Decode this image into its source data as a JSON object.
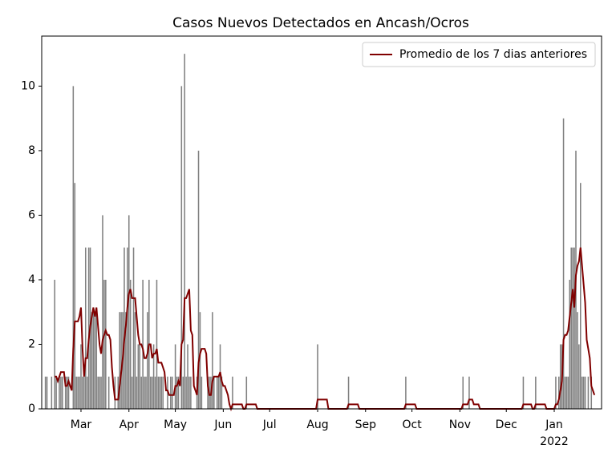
{
  "chart_data": {
    "type": "bar",
    "title": "Casos Nuevos Detectados en Ancash/Ocros",
    "series": [
      {
        "type": "bar",
        "color": "#808080",
        "values": [
          1,
          1,
          0,
          0,
          1,
          0,
          4,
          1,
          0,
          1,
          1,
          1,
          0,
          1,
          1,
          1,
          0,
          0,
          10,
          7,
          1,
          1,
          1,
          2,
          1,
          1,
          5,
          1,
          5,
          5,
          3,
          3,
          3,
          3,
          1,
          1,
          1,
          6,
          4,
          4,
          0,
          1,
          0,
          0,
          0,
          1,
          0,
          1,
          3,
          3,
          3,
          5,
          3,
          5,
          6,
          4,
          1,
          5,
          3,
          1,
          2,
          2,
          1,
          4,
          1,
          1,
          3,
          4,
          1,
          1,
          2,
          1,
          4,
          1,
          1,
          1,
          1,
          0,
          0,
          1,
          0,
          1,
          1,
          0,
          2,
          1,
          1,
          0,
          10,
          1,
          11,
          1,
          2,
          1,
          1,
          0,
          0,
          0,
          1,
          8,
          3,
          1,
          0,
          0,
          0,
          1,
          1,
          1,
          3,
          1,
          0,
          1,
          1,
          2,
          1,
          0,
          0,
          0,
          0,
          0,
          0,
          1,
          0,
          0,
          0,
          0,
          0,
          0,
          0,
          0,
          1,
          0,
          0,
          0,
          0,
          0,
          0,
          0,
          0,
          0,
          0,
          0,
          0,
          0,
          0,
          0,
          0,
          0,
          0,
          0,
          0,
          0,
          0,
          0,
          0,
          0,
          0,
          0,
          0,
          0,
          0,
          0,
          0,
          0,
          0,
          0,
          0,
          0,
          0,
          0,
          0,
          0,
          0,
          0,
          0,
          0,
          2,
          0,
          0,
          0,
          0,
          0,
          0,
          0,
          0,
          0,
          0,
          0,
          0,
          0,
          0,
          0,
          0,
          0,
          0,
          0,
          1,
          0,
          0,
          0,
          0,
          0,
          0,
          0,
          0,
          0,
          0,
          0,
          0,
          0,
          0,
          0,
          0,
          0,
          0,
          0,
          0,
          0,
          0,
          0,
          0,
          0,
          0,
          0,
          0,
          0,
          0,
          0,
          0,
          0,
          0,
          0,
          0,
          1,
          0,
          0,
          0,
          0,
          0,
          0,
          0,
          0,
          0,
          0,
          0,
          0,
          0,
          0,
          0,
          0,
          0,
          0,
          0,
          0,
          0,
          0,
          0,
          0,
          0,
          0,
          0,
          0,
          0,
          0,
          0,
          0,
          0,
          0,
          0,
          0,
          1,
          0,
          0,
          0,
          1,
          0,
          0,
          0,
          0,
          0,
          0,
          0,
          0,
          0,
          0,
          0,
          0,
          0,
          0,
          0,
          0,
          0,
          0,
          0,
          0,
          0,
          0,
          0,
          0,
          0,
          0,
          0,
          0,
          0,
          0,
          0,
          0,
          0,
          0,
          1,
          0,
          0,
          0,
          0,
          0,
          0,
          0,
          1,
          0,
          0,
          0,
          0,
          0,
          0,
          0,
          0,
          0,
          0,
          0,
          0,
          1,
          0,
          1,
          2,
          2,
          9,
          1,
          1,
          1,
          4,
          5,
          5,
          5,
          8,
          3,
          2,
          7,
          1,
          1,
          1,
          0,
          1,
          0,
          1,
          0,
          0
        ]
      },
      {
        "type": "line",
        "name": "Promedio de los 7 dias anteriores",
        "color": "#800000",
        "values": [
          null,
          null,
          null,
          null,
          null,
          null,
          1.0,
          1.0,
          0.86,
          1.0,
          1.14,
          1.14,
          1.14,
          0.71,
          0.71,
          0.86,
          0.71,
          0.57,
          1.86,
          2.71,
          2.71,
          2.71,
          2.86,
          3.14,
          1.86,
          1.0,
          1.57,
          1.57,
          2.14,
          2.57,
          2.86,
          3.14,
          2.86,
          3.14,
          2.57,
          2.0,
          1.71,
          2.14,
          2.29,
          2.43,
          2.29,
          2.29,
          2.14,
          1.29,
          0.71,
          0.29,
          0.29,
          0.29,
          0.71,
          1.14,
          1.57,
          2.14,
          2.57,
          3.14,
          3.57,
          3.71,
          3.43,
          3.43,
          3.43,
          2.86,
          2.29,
          2.0,
          2.0,
          1.86,
          1.57,
          1.57,
          1.71,
          2.0,
          2.0,
          1.57,
          1.71,
          1.71,
          1.86,
          1.43,
          1.43,
          1.43,
          1.29,
          1.14,
          0.57,
          0.57,
          0.43,
          0.43,
          0.43,
          0.43,
          0.71,
          0.71,
          0.86,
          0.71,
          2.0,
          2.14,
          3.43,
          3.43,
          3.57,
          3.71,
          2.43,
          2.29,
          0.71,
          0.57,
          0.43,
          1.43,
          1.71,
          1.86,
          1.86,
          1.86,
          1.71,
          0.71,
          0.43,
          0.43,
          0.86,
          1.0,
          1.0,
          1.0,
          1.0,
          1.14,
          0.86,
          0.71,
          0.71,
          0.57,
          0.43,
          0.14,
          0,
          0.14,
          0.14,
          0.14,
          0.14,
          0.14,
          0.14,
          0.14,
          0,
          0,
          0.14,
          0.14,
          0.14,
          0.14,
          0.14,
          0.14,
          0.14,
          0,
          0,
          0,
          0,
          0,
          0,
          0,
          0,
          0,
          0,
          0,
          0,
          0,
          0,
          0,
          0,
          0,
          0,
          0,
          0,
          0,
          0,
          0,
          0,
          0,
          0,
          0,
          0,
          0,
          0,
          0,
          0,
          0,
          0,
          0,
          0,
          0,
          0,
          0,
          0.29,
          0.29,
          0.29,
          0.29,
          0.29,
          0.29,
          0.29,
          0,
          0,
          0,
          0,
          0,
          0,
          0,
          0,
          0,
          0,
          0,
          0,
          0,
          0.14,
          0.14,
          0.14,
          0.14,
          0.14,
          0.14,
          0.14,
          0,
          0,
          0,
          0,
          0,
          0,
          0,
          0,
          0,
          0,
          0,
          0,
          0,
          0,
          0,
          0,
          0,
          0,
          0,
          0,
          0,
          0,
          0,
          0,
          0,
          0,
          0,
          0,
          0,
          0,
          0.14,
          0.14,
          0.14,
          0.14,
          0.14,
          0.14,
          0.14,
          0,
          0,
          0,
          0,
          0,
          0,
          0,
          0,
          0,
          0,
          0,
          0,
          0,
          0,
          0,
          0,
          0,
          0,
          0,
          0,
          0,
          0,
          0,
          0,
          0,
          0,
          0,
          0,
          0,
          0,
          0.14,
          0.14,
          0.14,
          0.14,
          0.29,
          0.29,
          0.29,
          0.14,
          0.14,
          0.14,
          0.14,
          0,
          0,
          0,
          0,
          0,
          0,
          0,
          0,
          0,
          0,
          0,
          0,
          0,
          0,
          0,
          0,
          0,
          0,
          0,
          0,
          0,
          0,
          0,
          0,
          0,
          0,
          0,
          0,
          0.14,
          0.14,
          0.14,
          0.14,
          0.14,
          0.14,
          0,
          0,
          0.14,
          0.14,
          0.14,
          0.14,
          0.14,
          0.14,
          0.14,
          0,
          0,
          0,
          0,
          0,
          0,
          0.14,
          0.14,
          0.29,
          0.57,
          0.86,
          2.14,
          2.29,
          2.29,
          2.43,
          2.86,
          3.29,
          3.71,
          3.14,
          4.14,
          4.43,
          4.57,
          5.0,
          4.43,
          3.86,
          3.29,
          2.14,
          1.86,
          1.57,
          0.71,
          0.57,
          0.43
        ]
      }
    ],
    "xlim": [
      -2.4,
      359.6
    ],
    "xticks": [
      {
        "value": 23,
        "label": "Mar"
      },
      {
        "value": 54,
        "label": "Apr"
      },
      {
        "value": 84,
        "label": "May"
      },
      {
        "value": 115,
        "label": "Jun"
      },
      {
        "value": 145,
        "label": "Jul"
      },
      {
        "value": 176,
        "label": "Aug"
      },
      {
        "value": 207,
        "label": "Sep"
      },
      {
        "value": 237,
        "label": "Oct"
      },
      {
        "value": 268,
        "label": "Nov"
      },
      {
        "value": 298,
        "label": "Dec"
      },
      {
        "value": 329,
        "label": "Jan"
      }
    ],
    "x_offset_text": "2022",
    "ylim": [
      0,
      11.55
    ],
    "yticks": [
      0,
      2,
      4,
      6,
      8,
      10
    ],
    "legend": "upper right"
  }
}
